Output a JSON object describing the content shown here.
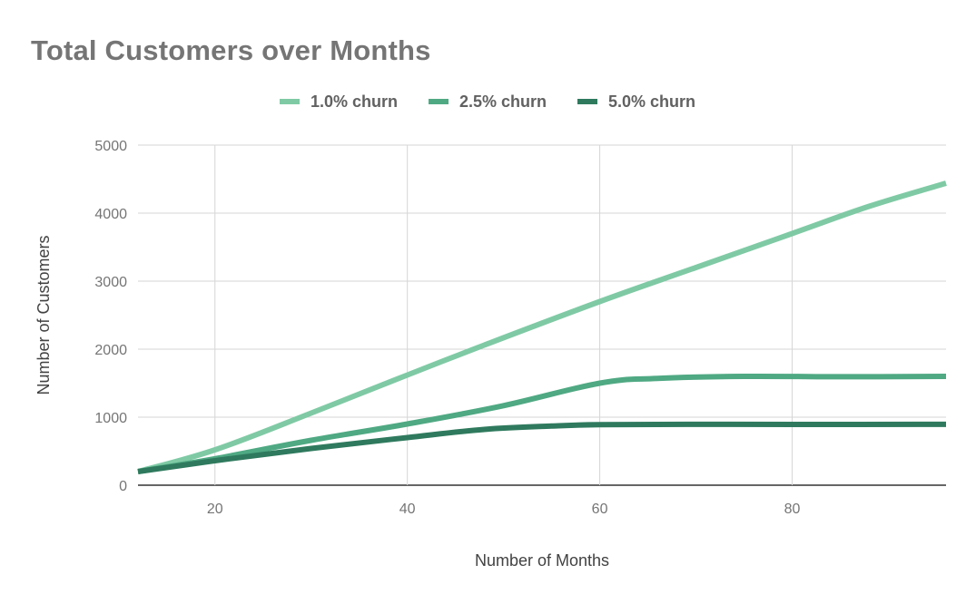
{
  "chart_data": {
    "type": "line",
    "title": "Total Customers over Months",
    "xlabel": "Number of Months",
    "ylabel": "Number of Customers",
    "xlim": [
      12,
      96
    ],
    "ylim": [
      0,
      5000
    ],
    "x_ticks": [
      20,
      40,
      60,
      80
    ],
    "y_ticks": [
      0,
      1000,
      2000,
      3000,
      4000,
      5000
    ],
    "grid": true,
    "legend_position": "top",
    "series": [
      {
        "name": "1.0% churn",
        "color": "#7fcaa5",
        "points": [
          [
            12,
            200
          ],
          [
            20,
            520
          ],
          [
            30,
            1060
          ],
          [
            40,
            1620
          ],
          [
            48,
            2060
          ],
          [
            60,
            2700
          ],
          [
            70,
            3200
          ],
          [
            80,
            3700
          ],
          [
            88,
            4100
          ],
          [
            96,
            4440
          ]
        ]
      },
      {
        "name": "2.5% churn",
        "color": "#4fa983",
        "points": [
          [
            12,
            200
          ],
          [
            20,
            390
          ],
          [
            30,
            660
          ],
          [
            40,
            900
          ],
          [
            50,
            1170
          ],
          [
            60,
            1500
          ],
          [
            66,
            1570
          ],
          [
            75,
            1600
          ],
          [
            85,
            1595
          ],
          [
            96,
            1600
          ]
        ]
      },
      {
        "name": "5.0% churn",
        "color": "#2f7a5e",
        "points": [
          [
            12,
            200
          ],
          [
            20,
            360
          ],
          [
            30,
            540
          ],
          [
            40,
            700
          ],
          [
            48,
            820
          ],
          [
            55,
            870
          ],
          [
            60,
            890
          ],
          [
            70,
            895
          ],
          [
            80,
            893
          ],
          [
            96,
            895
          ]
        ]
      }
    ]
  }
}
